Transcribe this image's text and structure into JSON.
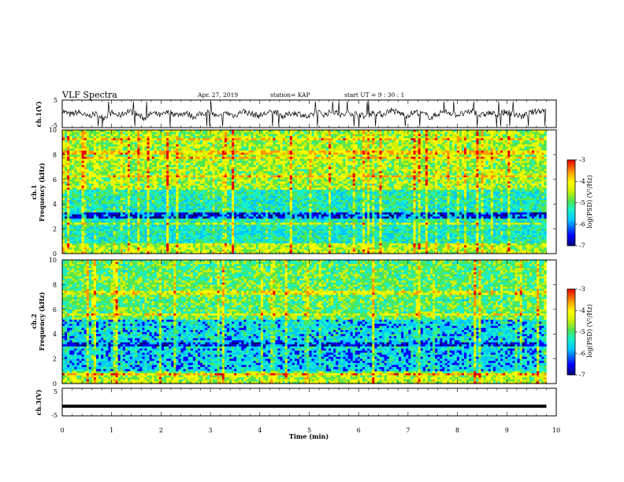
{
  "header": {
    "title": "VLF Spectra",
    "date": "Apr. 27, 2019",
    "station": "station= KAP",
    "start": "start  UT  =   9 : 30 : 1"
  },
  "colors": {
    "trace": "#000000",
    "colormap": [
      "#00007a",
      "#0000ff",
      "#00c8ff",
      "#19f0c8",
      "#50e650",
      "#d2f000",
      "#ffff00",
      "#ff9600",
      "#e60000"
    ]
  },
  "chart_data": [
    {
      "id": "ch1-waveform",
      "type": "line",
      "ylabel": "ch.1(V)",
      "ylim": [
        -5,
        5
      ],
      "yticks": [
        "5",
        "-5"
      ],
      "xlim": [
        0,
        10
      ],
      "x_max_data": 9.8,
      "grid": false,
      "description_values": "dense noisy waveform fluctuating roughly between -2 and 3 V",
      "sampled_y": [
        1.5,
        -0.5,
        1,
        -1.5,
        0,
        -2,
        0.5,
        -1,
        1.5,
        0,
        -2.5,
        0.5,
        -1,
        1,
        -0.5,
        0.5,
        -1.5,
        0,
        1,
        -2,
        0.5,
        -1,
        1.5,
        0,
        -1,
        0.5,
        1,
        -1.5,
        0.5,
        0,
        -2,
        1,
        -0.5,
        1.5,
        -1,
        0.5,
        0,
        -1.5,
        1,
        -0.5,
        2,
        0.5,
        -1,
        1,
        0,
        -2,
        0.5,
        1,
        -0.5,
        0,
        1.5,
        -1,
        0.5,
        -0.5,
        1,
        0,
        -1.5,
        0.5,
        1.5,
        2
      ]
    },
    {
      "id": "ch1-spectrogram",
      "type": "heatmap",
      "ylabel": "ch.1",
      "ylabel2": "Frequency  (kHz)",
      "ylim": [
        0,
        10
      ],
      "yticks": [
        "0",
        "2",
        "4",
        "6",
        "8",
        "10"
      ],
      "xlim": [
        0,
        10
      ],
      "colorbar": {
        "label": "log(PSD) (V²/Hz)",
        "range": [
          -7,
          -3
        ],
        "ticks": [
          "-3",
          "-4",
          "-5",
          "-6",
          "-7"
        ]
      }
    },
    {
      "id": "ch2-spectrogram",
      "type": "heatmap",
      "ylabel": "ch.2",
      "ylabel2": "Frequency  (kHz)",
      "ylim": [
        0,
        10
      ],
      "yticks": [
        "0",
        "2",
        "4",
        "6",
        "8",
        "10"
      ],
      "xlim": [
        0,
        10
      ],
      "colorbar": {
        "label": "log(PSD) (V²/Hz)",
        "range": [
          -7,
          -3
        ],
        "ticks": [
          "-3",
          "-4",
          "-5",
          "-6",
          "-7"
        ]
      }
    },
    {
      "id": "ch3-waveform",
      "type": "line",
      "ylabel": "ch.3(V)",
      "ylim": [
        -5,
        5
      ],
      "yticks": [
        "5",
        "-5"
      ],
      "xlim": [
        0,
        10
      ],
      "x_max_data": 9.8,
      "constant_value": -1.5,
      "xlabel": "Time  (min)",
      "xticks": [
        "0",
        "1",
        "2",
        "3",
        "4",
        "5",
        "6",
        "7",
        "8",
        "9",
        "10"
      ]
    }
  ]
}
